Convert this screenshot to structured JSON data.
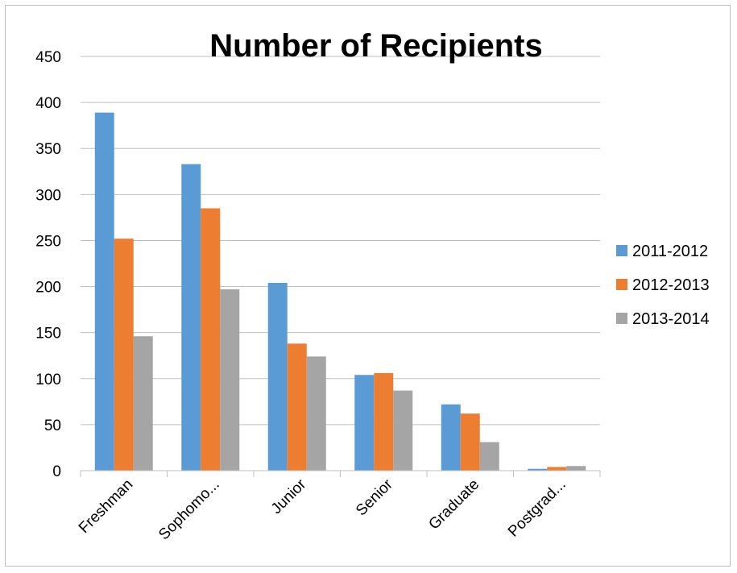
{
  "chart_data": {
    "type": "bar",
    "title": "Number of Recipients",
    "xlabel": "",
    "ylabel": "",
    "categories": [
      "Freshman",
      "Sophomo...",
      "Junior",
      "Senior",
      "Graduate",
      "Postgrad..."
    ],
    "series": [
      {
        "name": "2011-2012",
        "color": "#5b9bd5",
        "values": [
          389,
          333,
          204,
          104,
          72,
          2
        ]
      },
      {
        "name": "2012-2013",
        "color": "#ed7d31",
        "values": [
          252,
          285,
          138,
          106,
          62,
          4
        ]
      },
      {
        "name": "2013-2014",
        "color": "#a5a5a5",
        "values": [
          146,
          197,
          124,
          87,
          31,
          5
        ]
      }
    ],
    "ylim": [
      0,
      450
    ],
    "yticks": [
      0,
      50,
      100,
      150,
      200,
      250,
      300,
      350,
      400,
      450
    ],
    "grid": true,
    "legend": "right"
  }
}
